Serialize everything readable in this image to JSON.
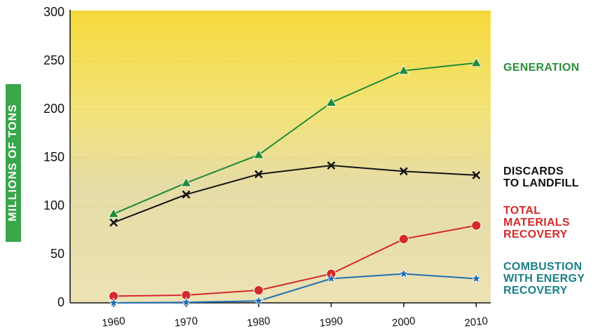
{
  "chart_data": {
    "type": "line",
    "y_label": "MILLIONS OF TONS",
    "x": [
      1960,
      1970,
      1980,
      1990,
      2000,
      2010
    ],
    "xlim": [
      1954,
      2012
    ],
    "xticks": [
      1960,
      1970,
      1980,
      1990,
      2000,
      2010
    ],
    "ylim": [
      0,
      300
    ],
    "yticks": [
      0,
      50,
      100,
      150,
      200,
      250,
      300
    ],
    "grid": true,
    "series": [
      {
        "name": "GENERATION",
        "color": "#1f8a3a",
        "label_color": "#2a8f3a",
        "marker": "triangle",
        "values": [
          92,
          124,
          153,
          207,
          240,
          248
        ]
      },
      {
        "name": "DISCARDS\nTO LANDFILL",
        "color": "#141414",
        "label_color": "#111111",
        "marker": "x",
        "values": [
          83,
          112,
          133,
          142,
          136,
          132
        ]
      },
      {
        "name": "TOTAL\nMATERIALS\nRECOVERY",
        "color": "#d42a2a",
        "label_color": "#d42a2a",
        "marker": "circle",
        "values": [
          7,
          8,
          13,
          30,
          66,
          80
        ]
      },
      {
        "name": "COMBUSTION\nWITH ENERGY\nRECOVERY",
        "color": "#1e6fb5",
        "label_color": "#1a7f86",
        "marker": "star",
        "values": [
          0,
          0.5,
          2,
          25,
          30,
          25
        ]
      }
    ]
  }
}
